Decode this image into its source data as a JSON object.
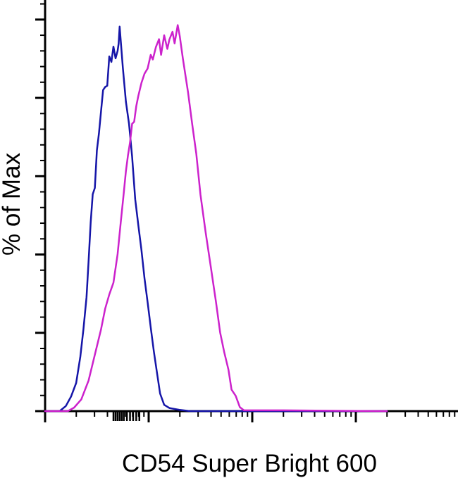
{
  "chart_data": {
    "type": "line",
    "title": "",
    "xlabel": "CD54 Super Bright 600",
    "ylabel": "% of Max",
    "xscale": "log",
    "grid": false,
    "legend": "none",
    "ylim": [
      0,
      105
    ],
    "series": [
      {
        "color": "#1515a8",
        "points": [
          [
            0.0,
            0
          ],
          [
            0.14,
            0
          ],
          [
            0.2,
            1.3
          ],
          [
            0.25,
            3.7
          ],
          [
            0.3,
            7.2
          ],
          [
            0.34,
            13.9
          ],
          [
            0.37,
            20.9
          ],
          [
            0.4,
            29.1
          ],
          [
            0.42,
            38.2
          ],
          [
            0.44,
            48.2
          ],
          [
            0.46,
            55.4
          ],
          [
            0.48,
            57.0
          ],
          [
            0.5,
            66.6
          ],
          [
            0.52,
            70.9
          ],
          [
            0.54,
            76.6
          ],
          [
            0.56,
            82.0
          ],
          [
            0.58,
            82.8
          ],
          [
            0.6,
            83.1
          ],
          [
            0.62,
            90.6
          ],
          [
            0.64,
            89.2
          ],
          [
            0.66,
            93.1
          ],
          [
            0.68,
            90.1
          ],
          [
            0.7,
            92.0
          ],
          [
            0.71,
            93.9
          ],
          [
            0.72,
            98.2
          ],
          [
            0.75,
            87.8
          ],
          [
            0.78,
            79.0
          ],
          [
            0.81,
            73.4
          ],
          [
            0.84,
            65.0
          ],
          [
            0.87,
            54.1
          ],
          [
            0.9,
            47.5
          ],
          [
            0.93,
            41.2
          ],
          [
            0.96,
            33.9
          ],
          [
            0.99,
            27.8
          ],
          [
            1.02,
            21.4
          ],
          [
            1.05,
            15.3
          ],
          [
            1.08,
            9.8
          ],
          [
            1.11,
            4.5
          ],
          [
            1.15,
            1.6
          ],
          [
            1.2,
            0.8
          ],
          [
            1.3,
            0.3
          ],
          [
            1.4,
            0
          ],
          [
            3.3,
            0
          ]
        ]
      },
      {
        "color": "#cc22cc",
        "points": [
          [
            0.0,
            0
          ],
          [
            0.22,
            0
          ],
          [
            0.28,
            0.9
          ],
          [
            0.35,
            3.0
          ],
          [
            0.42,
            7.8
          ],
          [
            0.48,
            14.4
          ],
          [
            0.54,
            20.9
          ],
          [
            0.58,
            26.2
          ],
          [
            0.62,
            29.8
          ],
          [
            0.66,
            32.8
          ],
          [
            0.7,
            40.1
          ],
          [
            0.73,
            48.1
          ],
          [
            0.76,
            55.8
          ],
          [
            0.78,
            61.3
          ],
          [
            0.8,
            65.3
          ],
          [
            0.82,
            68.6
          ],
          [
            0.84,
            73.4
          ],
          [
            0.86,
            73.9
          ],
          [
            0.88,
            77.9
          ],
          [
            0.9,
            80.5
          ],
          [
            0.93,
            83.8
          ],
          [
            0.96,
            86.2
          ],
          [
            0.99,
            87.5
          ],
          [
            1.0,
            88.7
          ],
          [
            1.02,
            91.0
          ],
          [
            1.04,
            89.8
          ],
          [
            1.07,
            93.0
          ],
          [
            1.1,
            95.0
          ],
          [
            1.12,
            91.0
          ],
          [
            1.15,
            96.0
          ],
          [
            1.18,
            92.5
          ],
          [
            1.2,
            94.9
          ],
          [
            1.23,
            96.9
          ],
          [
            1.25,
            93.9
          ],
          [
            1.28,
            98.6
          ],
          [
            1.3,
            95.8
          ],
          [
            1.33,
            90.1
          ],
          [
            1.38,
            81.4
          ],
          [
            1.42,
            73.4
          ],
          [
            1.46,
            65.7
          ],
          [
            1.5,
            55.3
          ],
          [
            1.55,
            45.6
          ],
          [
            1.6,
            36.8
          ],
          [
            1.65,
            27.9
          ],
          [
            1.69,
            20.1
          ],
          [
            1.73,
            15.0
          ],
          [
            1.77,
            10.6
          ],
          [
            1.8,
            5.5
          ],
          [
            1.84,
            3.9
          ],
          [
            1.88,
            1.0
          ],
          [
            1.92,
            0.2
          ],
          [
            2.3,
            0.2
          ],
          [
            3.3,
            0
          ]
        ]
      }
    ]
  }
}
